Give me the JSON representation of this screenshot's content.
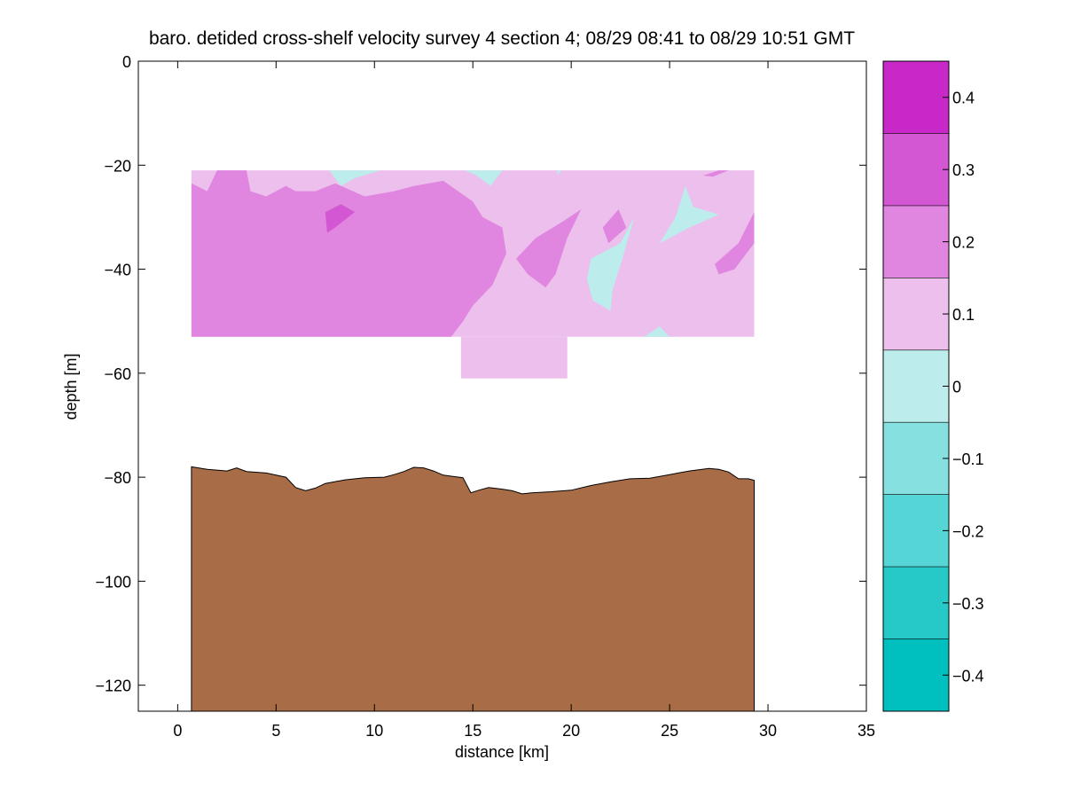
{
  "chart_data": {
    "type": "heatmap",
    "title": "baro. detided cross-shelf velocity survey 4 section 4; 08/29 08:41 to 08/29 10:51 GMT",
    "xlabel": "distance [km]",
    "ylabel": "depth [m]",
    "xlim": [
      -2,
      35
    ],
    "ylim": [
      -125,
      0
    ],
    "x_ticks": [
      0,
      5,
      10,
      15,
      20,
      25,
      30,
      35
    ],
    "y_ticks": [
      0,
      -20,
      -40,
      -60,
      -80,
      -100,
      -120
    ],
    "x_tick_labels": [
      "0",
      "5",
      "10",
      "15",
      "20",
      "25",
      "30",
      "35"
    ],
    "y_tick_labels": [
      "0",
      "−20",
      "−40",
      "−60",
      "−80",
      "−100",
      "−120"
    ],
    "colorbar": {
      "range": [
        -0.45,
        0.45
      ],
      "levels": [
        -0.45,
        -0.35,
        -0.25,
        -0.15,
        -0.05,
        0.05,
        0.15,
        0.25,
        0.35,
        0.45
      ],
      "colors": [
        "#00bfbf",
        "#26c8c8",
        "#55d5d5",
        "#87e0e0",
        "#bdecec",
        "#ecbfec",
        "#e085e0",
        "#d356d3",
        "#c828c8",
        "#bf00bf"
      ],
      "ticks": [
        -0.4,
        -0.3,
        -0.2,
        -0.1,
        0,
        0.1,
        0.2,
        0.3,
        0.4
      ],
      "tick_labels": [
        "−0.4",
        "−0.3",
        "−0.2",
        "−0.1",
        "0",
        "0.1",
        "0.2",
        "0.3",
        "0.4"
      ]
    },
    "data_region": {
      "main": {
        "x": [
          0.7,
          29.3
        ],
        "depth": [
          -21,
          -53
        ]
      },
      "lower_patch": {
        "x": [
          14.4,
          19.8
        ],
        "depth": [
          -53,
          -61
        ]
      }
    },
    "colors": {
      "seabed": "#a86c46",
      "background": "#ffffff"
    },
    "velocity_regions": [
      {
        "level": 0.1,
        "points": [
          [
            0.7,
            -21
          ],
          [
            29.3,
            -21
          ],
          [
            29.3,
            -53
          ],
          [
            0.7,
            -53
          ]
        ]
      },
      {
        "level": 0.1,
        "points": [
          [
            14.4,
            -53
          ],
          [
            19.8,
            -53
          ],
          [
            19.8,
            -61
          ],
          [
            14.4,
            -61
          ]
        ]
      },
      {
        "level": 0.15,
        "points": [
          [
            0.7,
            -23.5
          ],
          [
            1.5,
            -25
          ],
          [
            2.0,
            -21
          ],
          [
            3.5,
            -21
          ],
          [
            3.7,
            -25
          ],
          [
            4.5,
            -26
          ],
          [
            5.5,
            -24
          ],
          [
            6.0,
            -25
          ],
          [
            7.0,
            -25
          ],
          [
            8.0,
            -23.5
          ],
          [
            9.5,
            -26
          ],
          [
            11.0,
            -25
          ],
          [
            12.0,
            -24
          ],
          [
            13.5,
            -23
          ],
          [
            15.0,
            -27
          ],
          [
            15.5,
            -30
          ],
          [
            16.5,
            -32
          ],
          [
            16.7,
            -37
          ],
          [
            16.0,
            -43
          ],
          [
            15.0,
            -47
          ],
          [
            14.5,
            -50
          ],
          [
            13.9,
            -53
          ],
          [
            0.7,
            -53
          ]
        ]
      },
      {
        "level": 0.25,
        "points": [
          [
            7.5,
            -29
          ],
          [
            8.3,
            -27.5
          ],
          [
            9.0,
            -29
          ],
          [
            8.0,
            -32
          ],
          [
            7.6,
            -33
          ]
        ]
      },
      {
        "level": 0.15,
        "points": [
          [
            17.2,
            -38
          ],
          [
            18.2,
            -34
          ],
          [
            19.5,
            -31
          ],
          [
            20.5,
            -28.5
          ],
          [
            19.8,
            -34
          ],
          [
            19.2,
            -41
          ],
          [
            18.7,
            -43.5
          ],
          [
            17.8,
            -41
          ]
        ]
      },
      {
        "level": 0.15,
        "points": [
          [
            21.6,
            -32
          ],
          [
            22.4,
            -28.5
          ],
          [
            22.8,
            -32
          ],
          [
            21.9,
            -35
          ]
        ]
      },
      {
        "level": 0.15,
        "points": [
          [
            27.3,
            -39
          ],
          [
            28.5,
            -35
          ],
          [
            29.3,
            -29
          ],
          [
            29.3,
            -35
          ],
          [
            28.3,
            -40
          ],
          [
            27.5,
            -41
          ]
        ]
      },
      {
        "level": 0.15,
        "points": [
          [
            26.7,
            -22
          ],
          [
            27.5,
            -21
          ],
          [
            28.0,
            -21
          ],
          [
            27.2,
            -22.2
          ]
        ]
      },
      {
        "level": 0.0,
        "points": [
          [
            7.7,
            -21
          ],
          [
            10.3,
            -21
          ],
          [
            9.0,
            -22.5
          ],
          [
            8.3,
            -24
          ]
        ]
      },
      {
        "level": 0.0,
        "points": [
          [
            14.6,
            -21
          ],
          [
            16.5,
            -21
          ],
          [
            15.9,
            -24
          ],
          [
            15.2,
            -22
          ]
        ]
      },
      {
        "level": 0.0,
        "points": [
          [
            19.3,
            -21
          ],
          [
            19.5,
            -21
          ],
          [
            19.3,
            -22
          ]
        ]
      },
      {
        "level": 0.0,
        "points": [
          [
            21.0,
            -38
          ],
          [
            22.5,
            -35
          ],
          [
            23.2,
            -30
          ],
          [
            22.6,
            -38
          ],
          [
            22.1,
            -44
          ],
          [
            22.0,
            -48
          ],
          [
            21.1,
            -46
          ],
          [
            20.8,
            -42
          ]
        ]
      },
      {
        "level": 0.0,
        "points": [
          [
            24.5,
            -35
          ],
          [
            25.3,
            -30
          ],
          [
            25.8,
            -24
          ],
          [
            26.2,
            -28
          ],
          [
            27.5,
            -29.5
          ],
          [
            26.0,
            -32
          ]
        ]
      },
      {
        "level": 0.0,
        "points": [
          [
            23.7,
            -53
          ],
          [
            24.5,
            -51
          ],
          [
            25.0,
            -53
          ]
        ]
      }
    ],
    "bottom_profile": [
      [
        0.7,
        -78
      ],
      [
        1.5,
        -78.5
      ],
      [
        2.5,
        -78.8
      ],
      [
        3.0,
        -78.2
      ],
      [
        3.5,
        -78.9
      ],
      [
        4.5,
        -79.2
      ],
      [
        5.5,
        -80
      ],
      [
        6.0,
        -82
      ],
      [
        6.5,
        -82.6
      ],
      [
        7.0,
        -82.1
      ],
      [
        7.5,
        -81.2
      ],
      [
        8.5,
        -80.5
      ],
      [
        9.5,
        -80.1
      ],
      [
        10.5,
        -80.0
      ],
      [
        11.0,
        -79.5
      ],
      [
        11.5,
        -78.9
      ],
      [
        12.0,
        -78.1
      ],
      [
        12.5,
        -78.2
      ],
      [
        13.0,
        -78.8
      ],
      [
        13.5,
        -79.6
      ],
      [
        14.5,
        -80.1
      ],
      [
        14.9,
        -83.0
      ],
      [
        15.3,
        -82.5
      ],
      [
        15.8,
        -82.0
      ],
      [
        16.5,
        -82.3
      ],
      [
        17.0,
        -82.6
      ],
      [
        17.5,
        -83.2
      ],
      [
        18.0,
        -83.0
      ],
      [
        19.0,
        -82.8
      ],
      [
        20.0,
        -82.5
      ],
      [
        21.0,
        -81.6
      ],
      [
        22.0,
        -80.9
      ],
      [
        23.0,
        -80.3
      ],
      [
        24.0,
        -80.2
      ],
      [
        25.0,
        -79.5
      ],
      [
        26.0,
        -78.8
      ],
      [
        27.0,
        -78.3
      ],
      [
        27.5,
        -78.5
      ],
      [
        28.0,
        -79.0
      ],
      [
        28.5,
        -80.3
      ],
      [
        29.0,
        -80.3
      ],
      [
        29.3,
        -80.6
      ]
    ]
  }
}
